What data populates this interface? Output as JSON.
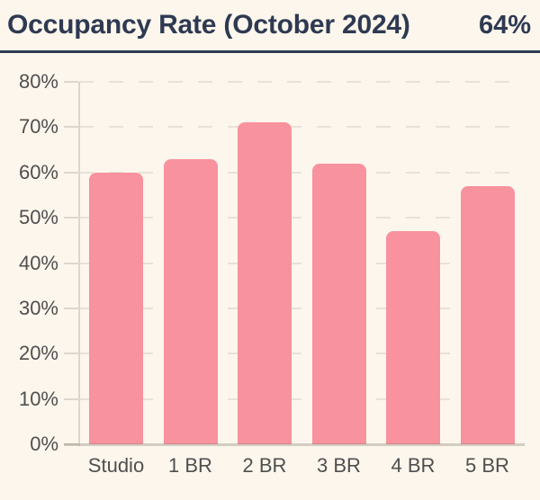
{
  "header": {
    "title": "Occupancy Rate (October 2024)",
    "value": "64%"
  },
  "colors": {
    "background": "#FDF6EC",
    "header_text": "#2E3A52",
    "separator": "#2E3A52",
    "bar": "#F8929E",
    "gridline": "#E7E2D7",
    "axis_line": "#DCD7CB",
    "axis_text": "#4F4F4F"
  },
  "chart_data": {
    "type": "bar",
    "title": "Occupancy Rate (October 2024)",
    "headline_value": "64%",
    "categories": [
      "Studio",
      "1 BR",
      "2 BR",
      "3 BR",
      "4 BR",
      "5 BR"
    ],
    "values": [
      60,
      63,
      71,
      62,
      47,
      57
    ],
    "xlabel": "",
    "ylabel": "",
    "ylim": [
      0,
      80
    ],
    "yticks": [
      {
        "value": 0,
        "label": "0%"
      },
      {
        "value": 10,
        "label": "10%"
      },
      {
        "value": 20,
        "label": "20%"
      },
      {
        "value": 30,
        "label": "30%"
      },
      {
        "value": 40,
        "label": "40%"
      },
      {
        "value": 50,
        "label": "50%"
      },
      {
        "value": 60,
        "label": "60%"
      },
      {
        "value": 70,
        "label": "70%"
      },
      {
        "value": 80,
        "label": "80%"
      }
    ],
    "grid": "horizontal-dashed",
    "legend": "none",
    "bar_color": "#F8929E"
  }
}
